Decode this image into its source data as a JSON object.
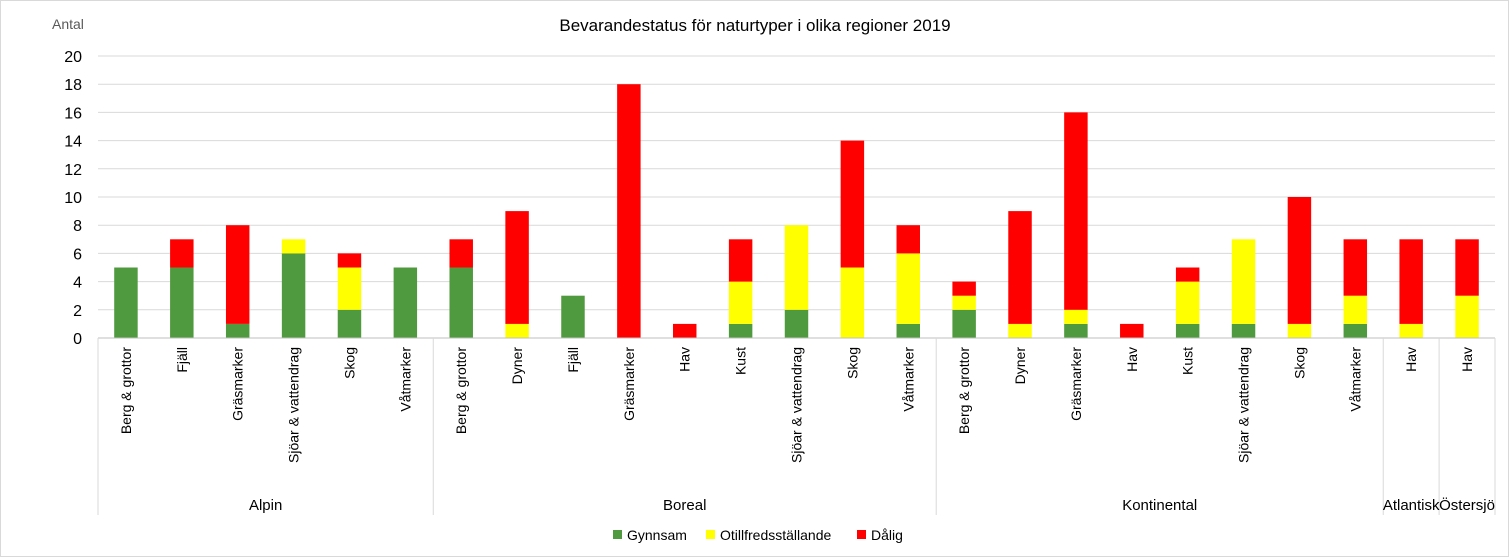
{
  "chart_data": {
    "type": "bar",
    "stacked": true,
    "title": "Bevarandestatus för naturtyper i olika regioner 2019",
    "ylabel": "Antal",
    "ylim": [
      0,
      20
    ],
    "yticks": [
      0,
      2,
      4,
      6,
      8,
      10,
      12,
      14,
      16,
      18,
      20
    ],
    "grid": true,
    "legend_position": "bottom",
    "groups": [
      {
        "name": "Alpin",
        "categories": [
          "Berg & grottor",
          "Fjäll",
          "Gräsmarker",
          "Sjöar & vattendrag",
          "Skog",
          "Våtmarker"
        ]
      },
      {
        "name": "Boreal",
        "categories": [
          "Berg & grottor",
          "Dyner",
          "Fjäll",
          "Gräsmarker",
          "Hav",
          "Kust",
          "Sjöar & vattendrag",
          "Skog",
          "Våtmarker"
        ]
      },
      {
        "name": "Kontinental",
        "categories": [
          "Berg & grottor",
          "Dyner",
          "Gräsmarker",
          "Hav",
          "Kust",
          "Sjöar & vattendrag",
          "Skog",
          "Våtmarker"
        ]
      },
      {
        "name": "Atlantisk",
        "categories": [
          "Hav"
        ]
      },
      {
        "name": "Östersjö",
        "categories": [
          "Hav"
        ]
      }
    ],
    "series": [
      {
        "name": "Gynnsam",
        "color": "#4f9a3e",
        "values": [
          5,
          5,
          1,
          6,
          2,
          5,
          5,
          0,
          3,
          0,
          0,
          1,
          2,
          0,
          1,
          2,
          0,
          1,
          0,
          1,
          1,
          0,
          1,
          0,
          0
        ]
      },
      {
        "name": "Otillfredsställande",
        "color": "#ffff00",
        "values": [
          0,
          0,
          0,
          1,
          3,
          0,
          0,
          1,
          0,
          0,
          0,
          3,
          6,
          5,
          5,
          1,
          1,
          1,
          0,
          3,
          6,
          1,
          2,
          1,
          3
        ]
      },
      {
        "name": "Dålig",
        "color": "#ff0000",
        "values": [
          0,
          2,
          7,
          0,
          1,
          0,
          2,
          8,
          0,
          18,
          1,
          3,
          0,
          9,
          2,
          1,
          8,
          14,
          1,
          1,
          0,
          9,
          4,
          6,
          4
        ]
      }
    ]
  }
}
